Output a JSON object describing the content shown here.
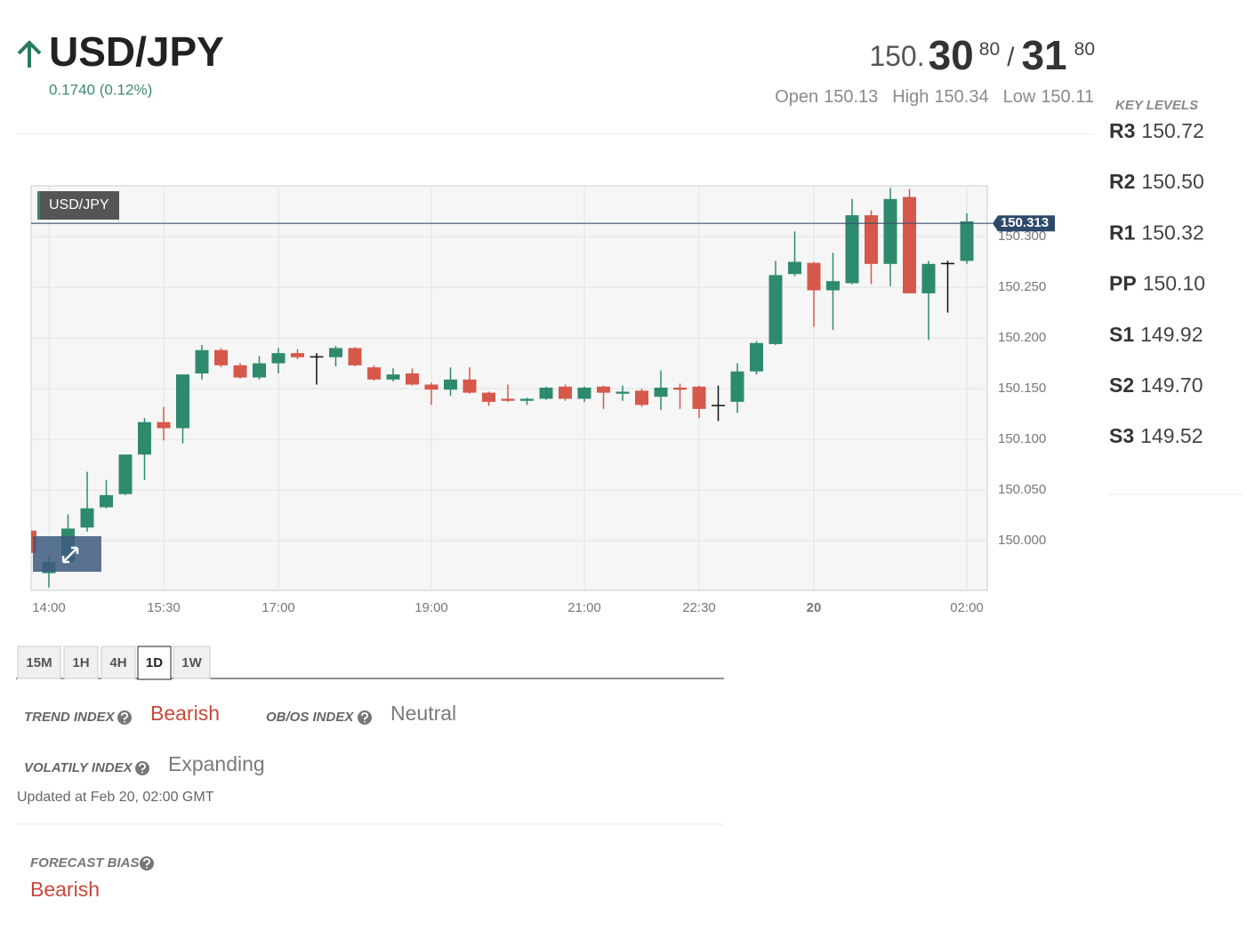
{
  "header": {
    "symbol": "USD/JPY",
    "change": "0.1740 (0.12%)",
    "price": {
      "bid_prefix": "150.",
      "bid_big": "30",
      "bid_small": "80",
      "separator": "/",
      "ask_big": "31",
      "ask_small": "80"
    },
    "stats": [
      {
        "label": "Open",
        "value": "150.13"
      },
      {
        "label": "High",
        "value": "150.34"
      },
      {
        "label": "Low",
        "value": "150.11"
      }
    ]
  },
  "key_levels": {
    "title": "KEY LEVELS",
    "levels": [
      {
        "label": "R3",
        "value": "150.72"
      },
      {
        "label": "R2",
        "value": "150.50"
      },
      {
        "label": "R1",
        "value": "150.32"
      },
      {
        "label": "PP",
        "value": "150.10"
      },
      {
        "label": "S1",
        "value": "149.92"
      },
      {
        "label": "S2",
        "value": "149.70"
      },
      {
        "label": "S3",
        "value": "149.52"
      }
    ]
  },
  "chart_data": {
    "type": "candlestick",
    "title": "USD/JPY",
    "categories": [
      null,
      "14:00",
      null,
      null,
      null,
      null,
      null,
      "15:30",
      null,
      null,
      null,
      null,
      null,
      "17:00",
      null,
      null,
      null,
      null,
      null,
      null,
      null,
      "19:00",
      null,
      null,
      null,
      null,
      null,
      null,
      null,
      "21:00",
      null,
      null,
      null,
      null,
      null,
      "22:30",
      null,
      null,
      null,
      null,
      null,
      "20",
      null,
      null,
      null,
      null,
      null,
      null,
      null,
      "02:00"
    ],
    "open": [
      150.01,
      149.968,
      149.979,
      150.013,
      150.033,
      150.046,
      150.085,
      150.117,
      150.111,
      150.165,
      150.188,
      150.173,
      150.161,
      150.175,
      150.185,
      150.182,
      150.181,
      150.19,
      150.171,
      150.159,
      150.165,
      150.154,
      150.149,
      150.159,
      150.146,
      150.14,
      150.138,
      150.14,
      150.152,
      150.14,
      150.152,
      150.145,
      150.148,
      150.142,
      150.151,
      150.152,
      150.134,
      150.137,
      150.167,
      150.194,
      150.263,
      150.274,
      150.247,
      150.254,
      150.321,
      150.273,
      150.339,
      150.244,
      150.274,
      150.276
    ],
    "high": [
      150.027,
      149.985,
      150.026,
      150.068,
      150.06,
      150.085,
      150.121,
      150.132,
      150.164,
      150.193,
      150.19,
      150.175,
      150.182,
      150.19,
      150.189,
      150.185,
      150.192,
      150.191,
      150.173,
      150.17,
      150.17,
      150.156,
      150.171,
      150.171,
      150.147,
      150.154,
      150.141,
      150.152,
      150.154,
      150.152,
      150.153,
      150.153,
      150.15,
      150.168,
      150.155,
      150.153,
      150.153,
      150.175,
      150.197,
      150.276,
      150.305,
      150.275,
      150.284,
      150.337,
      150.326,
      150.348,
      150.347,
      150.276,
      150.276,
      150.323
    ],
    "low": [
      149.96,
      149.954,
      149.975,
      150.009,
      150.032,
      150.045,
      150.06,
      150.099,
      150.096,
      150.159,
      150.171,
      150.16,
      150.159,
      150.165,
      150.179,
      150.154,
      150.172,
      150.172,
      150.158,
      150.157,
      150.153,
      150.134,
      150.143,
      150.145,
      150.133,
      150.137,
      150.134,
      150.139,
      150.138,
      150.137,
      150.13,
      150.138,
      150.132,
      150.129,
      150.13,
      150.121,
      150.118,
      150.126,
      150.164,
      150.193,
      150.261,
      150.211,
      150.208,
      150.253,
      150.253,
      150.251,
      150.244,
      150.198,
      150.225,
      150.273
    ],
    "close": [
      149.988,
      149.979,
      150.012,
      150.032,
      150.045,
      150.085,
      150.117,
      150.111,
      150.164,
      150.188,
      150.173,
      150.161,
      150.175,
      150.185,
      150.181,
      150.182,
      150.19,
      150.173,
      150.159,
      150.164,
      150.154,
      150.149,
      150.159,
      150.146,
      150.137,
      150.138,
      150.14,
      150.151,
      150.14,
      150.151,
      150.146,
      150.147,
      150.134,
      150.151,
      150.149,
      150.13,
      150.134,
      150.167,
      150.195,
      150.262,
      150.275,
      150.247,
      150.256,
      150.321,
      150.273,
      150.337,
      150.244,
      150.273,
      150.274,
      150.315
    ],
    "up_color": "#2e8a6e",
    "down_color": "#d6584a",
    "doji_color": "#111111",
    "last_price": 150.313,
    "ylim": [
      149.951,
      150.35
    ],
    "yticks": [
      {
        "value": 150.0,
        "label": "150.000"
      },
      {
        "value": 150.05,
        "label": "150.050"
      },
      {
        "value": 150.1,
        "label": "150.100"
      },
      {
        "value": 150.15,
        "label": "150.150"
      },
      {
        "value": 150.2,
        "label": "150.200"
      },
      {
        "value": 150.25,
        "label": "150.250"
      },
      {
        "value": 150.3,
        "label": "150.300"
      }
    ],
    "grid": true
  },
  "timeframes": {
    "options": [
      "15M",
      "1H",
      "4H",
      "1D",
      "1W"
    ],
    "active": "1D"
  },
  "indices": [
    {
      "label": "TREND INDEX",
      "value": "Bearish",
      "color": "#c9473a"
    },
    {
      "label": "OB/OS INDEX",
      "value": "Neutral",
      "color": "#7a7a7a"
    },
    {
      "label": "VOLATILY INDEX",
      "value": "Expanding",
      "color": "#7a7a7a"
    }
  ],
  "updated": "Updated at Feb 20, 02:00 GMT",
  "forecast": {
    "label": "FORECAST BIAS",
    "value": "Bearish",
    "color": "#c9473a"
  }
}
